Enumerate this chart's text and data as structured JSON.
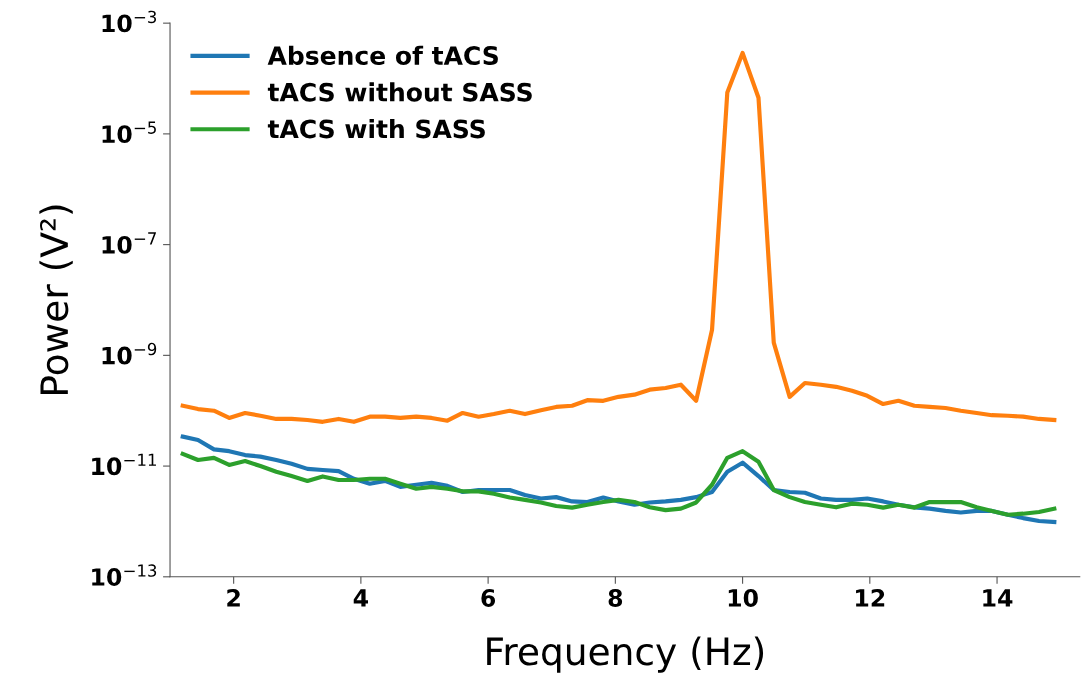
{
  "chart_data": {
    "type": "line",
    "xlabel": "Frequency (Hz)",
    "ylabel": "Power (V²)",
    "log": "y",
    "legend": "top left",
    "grid": false,
    "x": [
      1.2,
      1.44,
      1.69,
      1.93,
      2.18,
      2.42,
      2.67,
      2.91,
      3.16,
      3.4,
      3.65,
      3.89,
      4.14,
      4.38,
      4.62,
      4.87,
      5.11,
      5.36,
      5.6,
      5.85,
      6.09,
      6.34,
      6.58,
      6.83,
      7.07,
      7.32,
      7.56,
      7.81,
      8.05,
      8.3,
      8.54,
      8.79,
      9.03,
      9.27,
      9.52,
      9.76,
      10.0,
      10.25,
      10.49,
      10.74,
      10.98,
      11.23,
      11.47,
      11.72,
      11.96,
      12.21,
      12.45,
      12.7,
      12.94,
      13.19,
      13.43,
      13.68,
      13.92,
      14.17,
      14.41,
      14.66,
      14.9
    ],
    "xlim": [
      1.0,
      15.3
    ],
    "xticks": [
      2,
      4,
      6,
      8,
      10,
      12,
      14
    ],
    "ylim": [
      1e-13,
      0.001
    ],
    "yticks": [
      {
        "value": 1e-13,
        "label": "10$^{−13}$"
      },
      {
        "value": 1e-11,
        "label": "10$^{−11}$"
      },
      {
        "value": 1e-09,
        "label": "10$^{−9}$"
      },
      {
        "value": 1e-07,
        "label": "10$^{−7}$"
      },
      {
        "value": 1e-05,
        "label": "10$^{−5}$"
      },
      {
        "value": 0.001,
        "label": "10$^{−3}$"
      }
    ],
    "series": [
      {
        "name": "Absence of tACS",
        "color": "#1f77b4",
        "values": [
          3.4e-11,
          2.95e-11,
          2e-11,
          1.86e-11,
          1.58e-11,
          1.48e-11,
          1.29e-11,
          1.1e-11,
          8.9e-12,
          8.5e-12,
          8.1e-12,
          5.9e-12,
          4.8e-12,
          5.4e-12,
          4.2e-12,
          4.6e-12,
          5e-12,
          4.4e-12,
          3.4e-12,
          3.7e-12,
          3.7e-12,
          3.7e-12,
          3e-12,
          2.6e-12,
          2.75e-12,
          2.3e-12,
          2.24e-12,
          2.7e-12,
          2.3e-12,
          2e-12,
          2.2e-12,
          2.3e-12,
          2.45e-12,
          2.75e-12,
          3.4e-12,
          7.9e-12,
          1.15e-11,
          6.6e-12,
          3.7e-12,
          3.4e-12,
          3.3e-12,
          2.6e-12,
          2.45e-12,
          2.45e-12,
          2.6e-12,
          2.3e-12,
          2e-12,
          1.8e-12,
          1.7e-12,
          1.55e-12,
          1.45e-12,
          1.55e-12,
          1.55e-12,
          1.32e-12,
          1.15e-12,
          1.02e-12,
          9.8e-13
        ]
      },
      {
        "name": "tACS without SASS",
        "color": "#ff7f0e",
        "values": [
          1.23e-10,
          1.07e-10,
          1e-10,
          7.4e-11,
          9.1e-11,
          8.1e-11,
          7.1e-11,
          7.1e-11,
          6.8e-11,
          6.3e-11,
          7.1e-11,
          6.3e-11,
          7.8e-11,
          7.8e-11,
          7.4e-11,
          7.8e-11,
          7.4e-11,
          6.6e-11,
          9.1e-11,
          7.8e-11,
          8.7e-11,
          1e-10,
          8.7e-11,
          1.02e-10,
          1.17e-10,
          1.23e-10,
          1.55e-10,
          1.51e-10,
          1.78e-10,
          1.95e-10,
          2.4e-10,
          2.57e-10,
          2.95e-10,
          1.51e-10,
          2.9e-09,
          5.6e-05,
          0.00029,
          4.5e-05,
          1.7e-09,
          1.78e-10,
          3.16e-10,
          2.95e-10,
          2.7e-10,
          2.3e-10,
          1.86e-10,
          1.32e-10,
          1.51e-10,
          1.23e-10,
          1.17e-10,
          1.12e-10,
          1e-10,
          9.1e-11,
          8.3e-11,
          8.1e-11,
          7.8e-11,
          7.1e-11,
          6.8e-11
        ]
      },
      {
        "name": "tACS with SASS",
        "color": "#2ca02c",
        "values": [
          1.66e-11,
          1.29e-11,
          1.41e-11,
          1.05e-11,
          1.23e-11,
          1e-11,
          7.9e-12,
          6.6e-12,
          5.4e-12,
          6.5e-12,
          5.6e-12,
          5.6e-12,
          5.9e-12,
          5.9e-12,
          4.8e-12,
          3.9e-12,
          4.2e-12,
          3.9e-12,
          3.5e-12,
          3.5e-12,
          3.16e-12,
          2.7e-12,
          2.45e-12,
          2.2e-12,
          1.9e-12,
          1.78e-12,
          2e-12,
          2.24e-12,
          2.45e-12,
          2.24e-12,
          1.8e-12,
          1.6e-12,
          1.7e-12,
          2.2e-12,
          4.6e-12,
          1.41e-11,
          1.86e-11,
          1.2e-11,
          3.7e-12,
          2.75e-12,
          2.24e-12,
          2e-12,
          1.8e-12,
          2.1e-12,
          2e-12,
          1.78e-12,
          2e-12,
          1.78e-12,
          2.24e-12,
          2.24e-12,
          2.24e-12,
          1.8e-12,
          1.55e-12,
          1.32e-12,
          1.38e-12,
          1.48e-12,
          1.7e-12
        ]
      }
    ]
  }
}
